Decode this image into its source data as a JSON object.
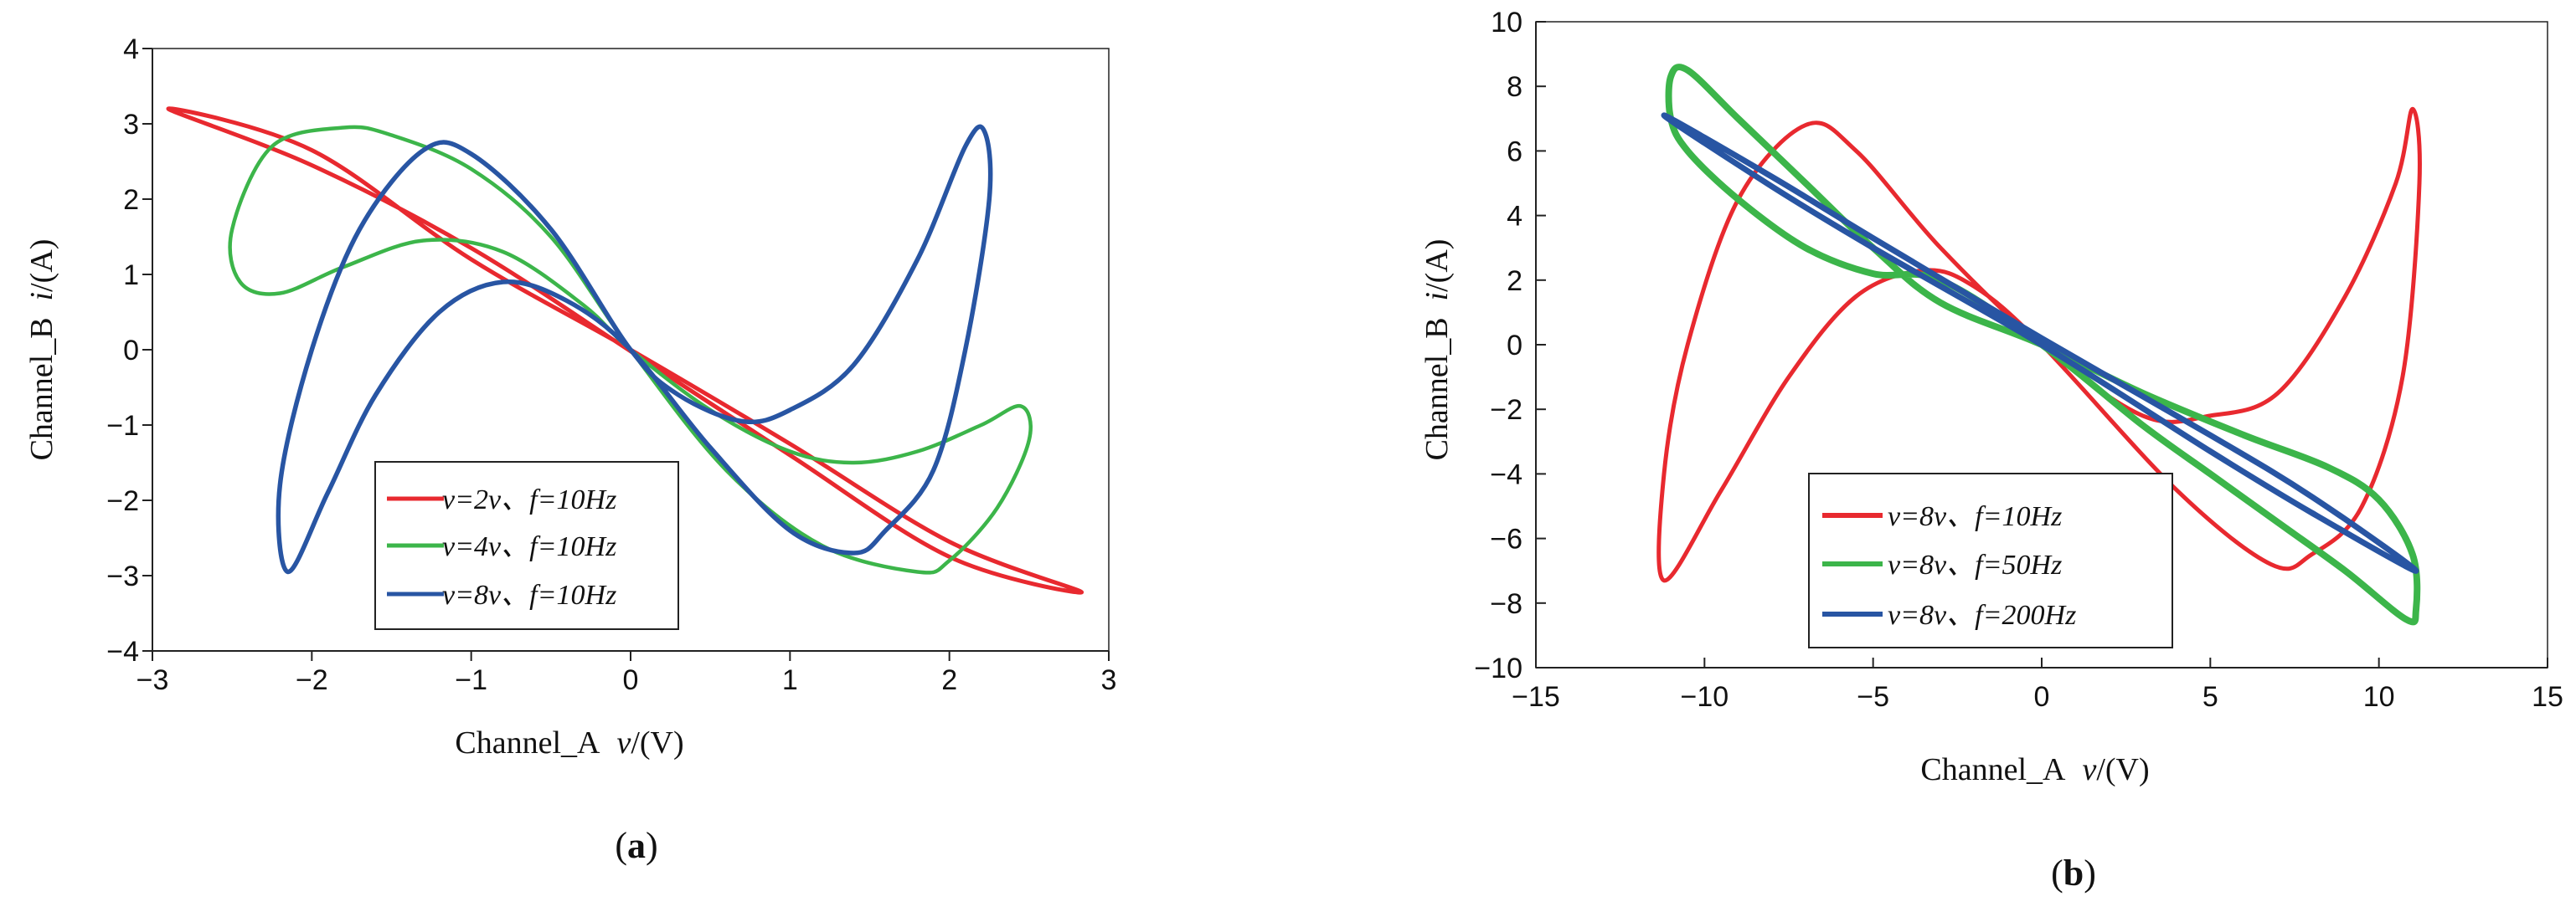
{
  "chart_data": [
    {
      "type": "line",
      "panel_label": "a",
      "xlabel_prefix": "Channel_A",
      "xlabel_var": "v",
      "xlabel_unit": "/(V)",
      "ylabel_prefix": "Channel_B",
      "ylabel_var": "i",
      "ylabel_unit": "/(A)",
      "xlim": [
        -3,
        3
      ],
      "ylim": [
        -4,
        4
      ],
      "xticks": [
        -3,
        -2,
        -1,
        0,
        1,
        2,
        3
      ],
      "yticks": [
        -4,
        -3,
        -2,
        -1,
        0,
        1,
        2,
        3,
        4
      ],
      "xtick_labels": [
        "−3",
        "−2",
        "−1",
        "0",
        "1",
        "2",
        "3"
      ],
      "ytick_labels": [
        "−4",
        "−3",
        "−2",
        "−1",
        "0",
        "1",
        "2",
        "3",
        "4"
      ],
      "legend_position": "bottom-center",
      "series": [
        {
          "name": "v=2v、f=10Hz",
          "color": "#e8292f",
          "points": [
            [
              -2.9,
              3.2
            ],
            [
              -2.0,
              2.65
            ],
            [
              -1.0,
              1.2
            ],
            [
              0.0,
              0.0
            ],
            [
              1.0,
              -1.25
            ],
            [
              2.0,
              -2.55
            ],
            [
              2.83,
              -3.22
            ],
            [
              2.0,
              -2.75
            ],
            [
              1.0,
              -1.4
            ],
            [
              0.0,
              -0.02
            ],
            [
              -1.0,
              1.35
            ],
            [
              -2.0,
              2.45
            ],
            [
              -2.9,
              3.2
            ]
          ]
        },
        {
          "name": "v=4v、f=10Hz",
          "color": "#3cb54a",
          "points": [
            [
              -1.8,
              2.95
            ],
            [
              -2.25,
              2.7
            ],
            [
              -2.5,
              1.6
            ],
            [
              -2.45,
              0.9
            ],
            [
              -2.2,
              0.75
            ],
            [
              -1.8,
              1.1
            ],
            [
              -1.3,
              1.45
            ],
            [
              -0.8,
              1.3
            ],
            [
              -0.3,
              0.6
            ],
            [
              0.0,
              0.0
            ],
            [
              0.5,
              -0.8
            ],
            [
              1.0,
              -1.35
            ],
            [
              1.4,
              -1.5
            ],
            [
              1.8,
              -1.35
            ],
            [
              2.2,
              -1.0
            ],
            [
              2.45,
              -0.75
            ],
            [
              2.5,
              -1.2
            ],
            [
              2.3,
              -2.1
            ],
            [
              2.0,
              -2.8
            ],
            [
              1.8,
              -2.95
            ],
            [
              1.2,
              -2.6
            ],
            [
              0.6,
              -1.6
            ],
            [
              0.0,
              0.0
            ],
            [
              -0.5,
              1.5
            ],
            [
              -1.0,
              2.4
            ],
            [
              -1.5,
              2.85
            ],
            [
              -1.8,
              2.95
            ]
          ]
        },
        {
          "name": "v=8v、f=10Hz",
          "color": "#2855a3",
          "points": [
            [
              -2.15,
              -2.95
            ],
            [
              -2.2,
              -1.8
            ],
            [
              -2.0,
              0.0
            ],
            [
              -1.7,
              1.6
            ],
            [
              -1.3,
              2.65
            ],
            [
              -1.0,
              2.6
            ],
            [
              -0.5,
              1.6
            ],
            [
              0.0,
              0.0
            ],
            [
              0.3,
              -0.6
            ],
            [
              0.7,
              -0.95
            ],
            [
              1.0,
              -0.8
            ],
            [
              1.4,
              -0.2
            ],
            [
              1.8,
              1.2
            ],
            [
              2.1,
              2.7
            ],
            [
              2.22,
              2.9
            ],
            [
              2.25,
              2.0
            ],
            [
              2.1,
              0.0
            ],
            [
              1.9,
              -1.6
            ],
            [
              1.6,
              -2.4
            ],
            [
              1.4,
              -2.7
            ],
            [
              1.0,
              -2.4
            ],
            [
              0.5,
              -1.3
            ],
            [
              0.0,
              0.0
            ],
            [
              -0.4,
              0.65
            ],
            [
              -0.8,
              0.9
            ],
            [
              -1.2,
              0.5
            ],
            [
              -1.6,
              -0.6
            ],
            [
              -1.9,
              -1.9
            ],
            [
              -2.15,
              -2.95
            ]
          ]
        }
      ]
    },
    {
      "type": "line",
      "panel_label": "b",
      "xlabel_prefix": "Channel_A",
      "xlabel_var": "v",
      "xlabel_unit": "/(V)",
      "ylabel_prefix": "Channel_B",
      "ylabel_var": "i",
      "ylabel_unit": "/(A)",
      "xlim": [
        -15,
        15
      ],
      "ylim": [
        -10,
        10
      ],
      "xticks": [
        -15,
        -10,
        -5,
        0,
        5,
        10,
        15
      ],
      "yticks": [
        -10,
        -8,
        -6,
        -4,
        -2,
        0,
        2,
        4,
        6,
        8,
        10
      ],
      "xtick_labels": [
        "−15",
        "−10",
        "−5",
        "0",
        "5",
        "10",
        "15"
      ],
      "ytick_labels": [
        "−10",
        "−8",
        "−6",
        "−4",
        "−2",
        "0",
        "2",
        "4",
        "6",
        "8",
        "10"
      ],
      "legend_position": "bottom-left",
      "series": [
        {
          "name": "v=8v、f=10Hz",
          "color": "#e8292f",
          "points": [
            [
              -11.2,
              -7.3
            ],
            [
              -11.2,
              -4.0
            ],
            [
              -10.5,
              0.0
            ],
            [
              -9.0,
              4.5
            ],
            [
              -7.0,
              6.8
            ],
            [
              -5.5,
              6.0
            ],
            [
              -3.0,
              3.0
            ],
            [
              0.0,
              0.0
            ],
            [
              3.0,
              -2.2
            ],
            [
              5.0,
              -2.2
            ],
            [
              7.0,
              -1.5
            ],
            [
              9.0,
              1.5
            ],
            [
              10.5,
              5.0
            ],
            [
              11.0,
              7.3
            ],
            [
              11.2,
              5.0
            ],
            [
              10.7,
              -1.0
            ],
            [
              9.5,
              -5.0
            ],
            [
              8.0,
              -6.5
            ],
            [
              6.8,
              -6.8
            ],
            [
              4.0,
              -4.5
            ],
            [
              0.0,
              0.0
            ],
            [
              -2.0,
              1.8
            ],
            [
              -3.5,
              2.3
            ],
            [
              -5.5,
              1.5
            ],
            [
              -7.5,
              -1.0
            ],
            [
              -9.5,
              -4.5
            ],
            [
              -11.2,
              -7.3
            ]
          ]
        },
        {
          "name": "v=8v、f=50Hz",
          "color": "#3cb54a",
          "points": [
            [
              -11.0,
              8.3
            ],
            [
              -10.5,
              8.5
            ],
            [
              -9.0,
              7.0
            ],
            [
              -7.0,
              5.0
            ],
            [
              -5.0,
              3.0
            ],
            [
              -3.0,
              1.3
            ],
            [
              0.0,
              0.0
            ],
            [
              3.0,
              -1.5
            ],
            [
              6.0,
              -2.8
            ],
            [
              8.5,
              -3.8
            ],
            [
              10.0,
              -4.8
            ],
            [
              11.0,
              -6.5
            ],
            [
              11.1,
              -8.2
            ],
            [
              10.8,
              -8.5
            ],
            [
              9.0,
              -7.0
            ],
            [
              7.0,
              -5.5
            ],
            [
              5.0,
              -4.0
            ],
            [
              3.0,
              -2.5
            ],
            [
              0.0,
              0.0
            ],
            [
              -3.0,
              2.0
            ],
            [
              -5.0,
              2.2
            ],
            [
              -7.0,
              3.0
            ],
            [
              -9.0,
              4.5
            ],
            [
              -10.5,
              6.0
            ],
            [
              -11.0,
              7.0
            ],
            [
              -11.0,
              8.3
            ]
          ]
        },
        {
          "name": "v=8v、f=200Hz",
          "color": "#2855a3",
          "points": [
            [
              -11.2,
              7.1
            ],
            [
              -8.0,
              4.9
            ],
            [
              -5.0,
              3.0
            ],
            [
              0.0,
              0.0
            ],
            [
              5.0,
              -3.3
            ],
            [
              8.0,
              -5.2
            ],
            [
              11.1,
              -7.0
            ],
            [
              8.0,
              -4.7
            ],
            [
              5.0,
              -2.8
            ],
            [
              0.0,
              0.2
            ],
            [
              -5.0,
              3.3
            ],
            [
              -8.0,
              5.2
            ],
            [
              -11.2,
              7.1
            ]
          ]
        }
      ]
    }
  ]
}
